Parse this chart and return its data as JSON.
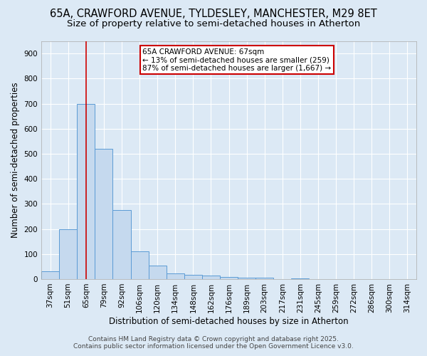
{
  "title_line1": "65A, CRAWFORD AVENUE, TYLDESLEY, MANCHESTER, M29 8ET",
  "title_line2": "Size of property relative to semi-detached houses in Atherton",
  "xlabel": "Distribution of semi-detached houses by size in Atherton",
  "ylabel": "Number of semi-detached properties",
  "categories": [
    "37sqm",
    "51sqm",
    "65sqm",
    "79sqm",
    "92sqm",
    "106sqm",
    "120sqm",
    "134sqm",
    "148sqm",
    "162sqm",
    "176sqm",
    "189sqm",
    "203sqm",
    "217sqm",
    "231sqm",
    "245sqm",
    "259sqm",
    "272sqm",
    "286sqm",
    "300sqm",
    "314sqm"
  ],
  "values": [
    30,
    200,
    700,
    520,
    275,
    110,
    55,
    22,
    18,
    14,
    8,
    6,
    5,
    0,
    2,
    0,
    0,
    0,
    0,
    0,
    0
  ],
  "bar_color": "#c5d9ee",
  "bar_edge_color": "#5b9bd5",
  "red_line_x": 2,
  "annotation_title": "65A CRAWFORD AVENUE: 67sqm",
  "annotation_line1": "← 13% of semi-detached houses are smaller (259)",
  "annotation_line2": "87% of semi-detached houses are larger (1,667) →",
  "annotation_box_facecolor": "#ffffff",
  "annotation_box_edgecolor": "#cc0000",
  "red_line_color": "#cc0000",
  "ylim": [
    0,
    950
  ],
  "yticks": [
    0,
    100,
    200,
    300,
    400,
    500,
    600,
    700,
    800,
    900
  ],
  "plot_bg": "#dce9f5",
  "fig_bg": "#dce9f5",
  "grid_color": "#ffffff",
  "footer_line1": "Contains HM Land Registry data © Crown copyright and database right 2025.",
  "footer_line2": "Contains public sector information licensed under the Open Government Licence v3.0.",
  "title_fontsize": 10.5,
  "subtitle_fontsize": 9.5,
  "axis_label_fontsize": 8.5,
  "tick_fontsize": 7.5,
  "annotation_fontsize": 7.5,
  "footer_fontsize": 6.5
}
